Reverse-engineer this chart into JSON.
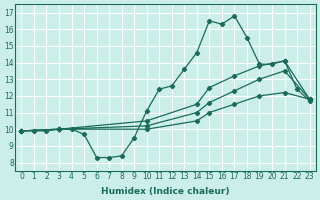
{
  "xlabel": "Humidex (Indice chaleur)",
  "ylabel": "",
  "bg_color": "#cceee8",
  "grid_color": "#ffffff",
  "line_color": "#1a6b5a",
  "xlim": [
    -0.5,
    23.5
  ],
  "ylim": [
    7.5,
    17.5
  ],
  "xticks": [
    0,
    1,
    2,
    3,
    4,
    5,
    6,
    7,
    8,
    9,
    10,
    11,
    12,
    13,
    14,
    15,
    16,
    17,
    18,
    19,
    20,
    21,
    22,
    23
  ],
  "yticks": [
    8,
    9,
    10,
    11,
    12,
    13,
    14,
    15,
    16,
    17
  ],
  "series": [
    [
      0,
      9.9,
      1,
      9.9,
      2,
      9.9,
      3,
      10.0,
      4,
      10.0,
      5,
      9.7,
      6,
      8.3,
      7,
      8.3,
      8,
      8.4,
      9,
      9.5,
      10,
      11.1,
      11,
      12.4,
      12,
      12.6,
      13,
      13.6,
      14,
      14.6,
      15,
      16.5,
      16,
      16.3,
      17,
      16.8,
      18,
      15.5,
      19,
      13.9,
      20,
      13.9,
      21,
      14.1,
      22,
      12.4,
      23,
      11.7
    ],
    [
      0,
      9.9,
      3,
      10.0,
      10,
      10.5,
      14,
      11.5,
      15,
      12.5,
      17,
      13.2,
      19,
      13.8,
      21,
      14.1,
      23,
      11.8
    ],
    [
      0,
      9.9,
      3,
      10.0,
      10,
      10.2,
      14,
      11.0,
      15,
      11.6,
      17,
      12.3,
      19,
      13.0,
      21,
      13.5,
      23,
      11.8
    ],
    [
      0,
      9.9,
      3,
      10.0,
      10,
      10.0,
      14,
      10.5,
      15,
      11.0,
      17,
      11.5,
      19,
      12.0,
      21,
      12.2,
      23,
      11.8
    ]
  ]
}
